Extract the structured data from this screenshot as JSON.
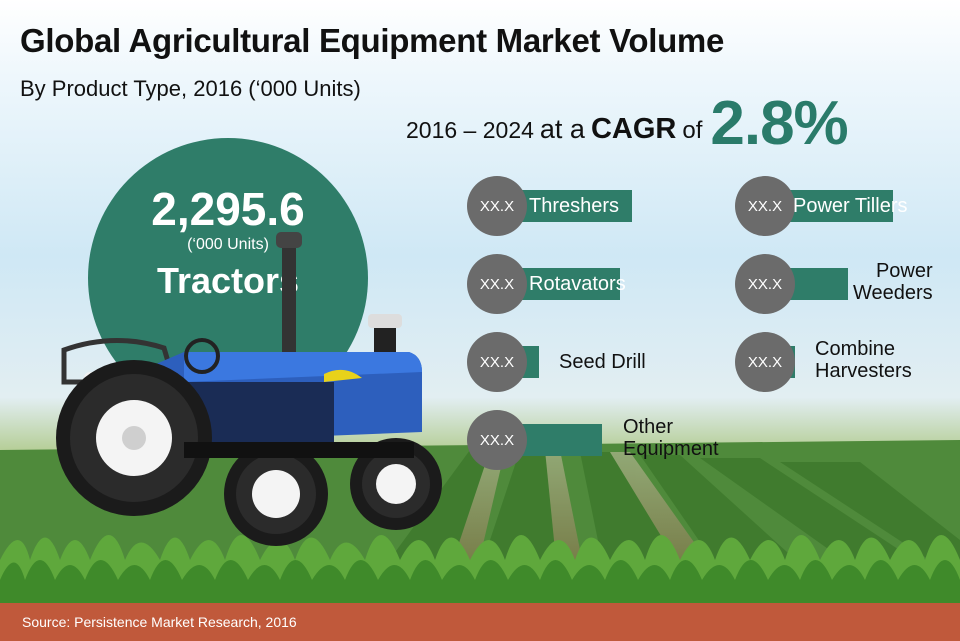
{
  "title": "Global Agricultural Equipment Market Volume",
  "subtitle": "By Product Type, 2016 (‘000 Units)",
  "cagr": {
    "period": "2016 – 2024",
    "at_a": "at a",
    "cagr_word": "CAGR",
    "of": "of",
    "value": "2.8%"
  },
  "hero": {
    "value": "2,295.6",
    "unit": "(‘000 Units)",
    "label": "Tractors"
  },
  "colors": {
    "accent": "#2f7d69",
    "cagr_text": "#2a7b6a",
    "bubble": "#6b6b6b",
    "source_bar": "#c0593b"
  },
  "chart_data": {
    "type": "bar",
    "title": "Global Agricultural Equipment Market Volume",
    "subtitle": "By Product Type, 2016 (‘000 Units)",
    "categories": [
      "Tractors",
      "Threshers",
      "Power Tillers",
      "Rotavators",
      "Power Weeders",
      "Seed Drill",
      "Combine Harvesters",
      "Other Equipment"
    ],
    "values": [
      2295.6,
      null,
      null,
      null,
      null,
      null,
      null,
      null
    ],
    "value_labels": [
      "2,295.6",
      "XX.X",
      "XX.X",
      "XX.X",
      "XX.X",
      "XX.X",
      "XX.X",
      "XX.X"
    ],
    "items": [
      {
        "label": "Threshers",
        "value_label": "XX.X",
        "bar_fraction": 0.9,
        "label_inside": true
      },
      {
        "label": "Power Tillers",
        "value_label": "XX.X",
        "bar_fraction": 0.85,
        "label_inside": true
      },
      {
        "label": "Rotavators",
        "value_label": "XX.X",
        "bar_fraction": 0.82,
        "label_inside": true
      },
      {
        "label": "Power Weeders",
        "value_label": "XX.X",
        "bar_fraction": 0.55,
        "label_inside": false
      },
      {
        "label": "Seed Drill",
        "value_label": "XX.X",
        "bar_fraction": 0.28,
        "label_inside": false
      },
      {
        "label": "Combine Harvesters",
        "value_label": "XX.X",
        "bar_fraction": 0.2,
        "label_inside": false
      },
      {
        "label": "Other Equipment",
        "value_label": "XX.X",
        "bar_fraction": 0.7,
        "label_inside": false
      }
    ]
  },
  "source": "Source: Persistence Market Research, 2016"
}
